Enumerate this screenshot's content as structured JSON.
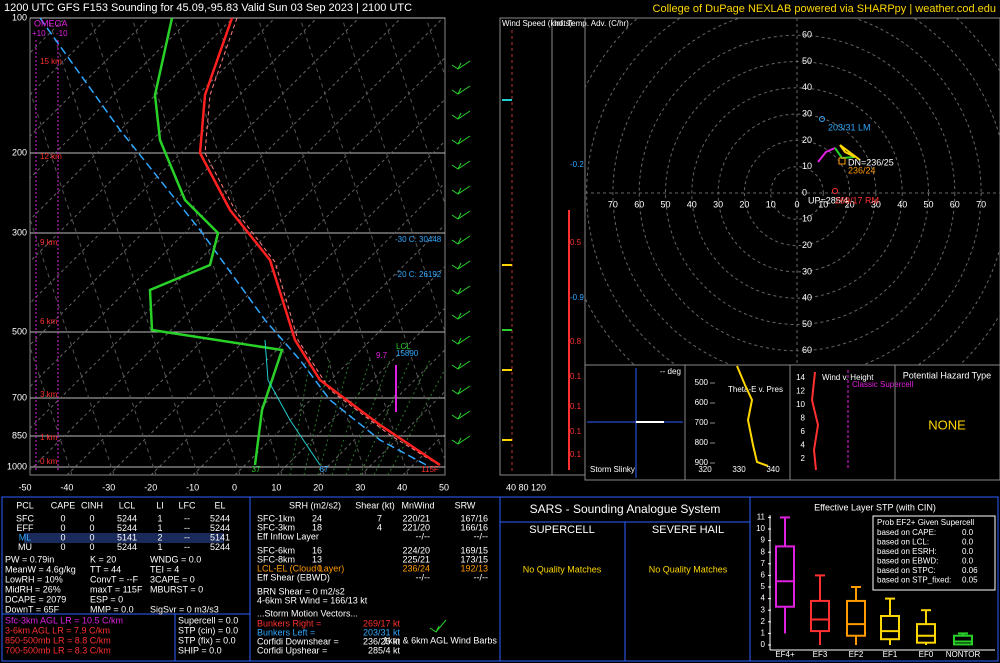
{
  "header": {
    "title": "1200 UTC GFS F153 Sounding for 45.09,-95.83 Valid  Sun 03 Sep 2023 | 2100 UTC",
    "credit": "College of DuPage NEXLAB powered via SHARPpy | weather.cod.edu"
  },
  "skewt": {
    "omega": "OMEGA",
    "omega_scale": [
      "+10",
      "-10"
    ],
    "pressures": [
      "100",
      "200",
      "300",
      "500",
      "700",
      "850",
      "1000"
    ],
    "temps": [
      "-50",
      "-40",
      "-30",
      "-20",
      "-10",
      "0",
      "10",
      "20",
      "30",
      "40",
      "50"
    ],
    "heights": [
      "15 km",
      "12 km",
      "9 km",
      "6 km",
      "3 km",
      "1 km",
      "0 km"
    ],
    "levels": [
      "-30 C: 30448",
      "-20 C: 26192",
      "LCL",
      "15890",
      "9.7"
    ],
    "sfc": [
      "37",
      "67",
      "115F"
    ]
  },
  "columns": {
    "wind_speed": "Wind Speed (knots)",
    "advection": "Inf. Temp. Adv. (C/hr)",
    "scale": "40 80 120",
    "advection_values": [
      "-0.2",
      "0.5",
      "-0.9",
      "0.8",
      "0.1",
      "0.1",
      "0.1",
      "0.1"
    ]
  },
  "hodograph": {
    "x_labels": [
      "70",
      "60",
      "50",
      "40",
      "30",
      "20",
      "10",
      "0",
      "10",
      "20",
      "30",
      "40",
      "50",
      "60",
      "70"
    ],
    "y_labels": [
      "60",
      "50",
      "40",
      "30",
      "20",
      "10",
      "0",
      "10",
      "20",
      "30",
      "40",
      "50",
      "60"
    ],
    "annotations": [
      "203/31 LM",
      "DN=236/25",
      "236/24",
      "UP=285/4",
      "269/17 RM"
    ]
  },
  "panels": {
    "slinky": "Storm Slinky",
    "slinky_deg": "-- deg",
    "theta_e": "Theta-E v. Pres",
    "theta_e_pressures": [
      "500",
      "600",
      "700",
      "800",
      "900"
    ],
    "theta_e_temps": [
      "320",
      "330",
      "340"
    ],
    "wind_height": "Wind v. Height",
    "classic_supercell": "Classic Supercell",
    "heights": [
      "14",
      "12",
      "10",
      "8",
      "6",
      "4",
      "2"
    ],
    "hazard_title": "Potential Hazard Type",
    "hazard": "NONE"
  },
  "parcels": {
    "header": [
      "PCL",
      "CAPE",
      "CINH",
      "LCL",
      "LI",
      "LFC",
      "EL"
    ],
    "rows": [
      [
        "SFC",
        "0",
        "0",
        "5244",
        "1",
        "--",
        "5244"
      ],
      [
        "EFF",
        "0",
        "0",
        "5244",
        "1",
        "--",
        "5244"
      ],
      [
        "ML",
        "0",
        "0",
        "5141",
        "2",
        "--",
        "5141"
      ],
      [
        "MU",
        "0",
        "0",
        "5244",
        "1",
        "--",
        "5244"
      ]
    ]
  },
  "indices": [
    [
      "PW = 0.79in",
      "K = 20",
      "WNDG = 0.0"
    ],
    [
      "MeanW = 4.6g/kg",
      "TT = 44",
      "TEI = 4"
    ],
    [
      "LowRH = 10%",
      "ConvT = --F",
      "3CAPE = 0"
    ],
    [
      "MidRH = 26%",
      "maxT = 115F",
      "MBURST = 0"
    ],
    [
      "DCAPE = 2079",
      "ESP = 0"
    ],
    [
      "DownT = 65F",
      "MMP = 0.0",
      "SigSvr = 0 m3/s3"
    ]
  ],
  "lapse_rates": [
    "Sfc-3km AGL LR = 10.5 C/km",
    "3-6km AGL LR = 7.9 C/km",
    "850-500mb LR = 8.8 C/km",
    "700-500mb LR = 8.3 C/km"
  ],
  "composites": [
    "Supercell = 0.0",
    "STP (cin) = 0.0",
    "STP (fix) = 0.0",
    "SHIP = 0.0"
  ],
  "kinematics": {
    "header": [
      "SRH (m2/s2)",
      "Shear (kt)",
      "MnWind",
      "SRW"
    ],
    "rows": [
      [
        "SFC-1km",
        "24",
        "7",
        "220/21",
        "167/16"
      ],
      [
        "SFC-3km",
        "18",
        "4",
        "221/20",
        "166/16"
      ],
      [
        "Eff Inflow Layer",
        "--/--",
        "--/--"
      ],
      [
        "SFC-6km",
        "16",
        "224/20",
        "169/15"
      ],
      [
        "SFC-8km",
        "13",
        "225/21",
        "173/15"
      ],
      [
        "LCL-EL (Cloud Layer)",
        "0",
        "236/24",
        "192/13"
      ],
      [
        "Eff Shear (EBWD)",
        "--/--",
        "--/--"
      ]
    ],
    "other": [
      "BRN Shear = 0 m2/s2",
      "4-6km SR Wind = 166/13 kt",
      "...Storm Motion Vectors..."
    ],
    "motions": [
      [
        "Bunkers Right = ",
        "269/17 kt"
      ],
      [
        "Bunkers Left = ",
        "203/31 kt"
      ],
      [
        "Corfidi Downshear = ",
        "236/25 kt"
      ],
      [
        "Corfidi Upshear = ",
        "285/4 kt"
      ]
    ],
    "barb_caption": "1km & 6km AGL Wind Barbs"
  },
  "sars": {
    "title": "SARS - Sounding Analogue System",
    "supercell": "SUPERCELL",
    "hail": "SEVERE HAIL",
    "supercell_result": "No Quality Matches",
    "hail_result": "No Quality Matches"
  },
  "stp": {
    "title": "Effective Layer STP (with CIN)",
    "yticks": [
      "0",
      "1",
      "2",
      "3",
      "4",
      "5",
      "6",
      "7",
      "8",
      "9",
      "10",
      "11"
    ],
    "categories": [
      "EF4+",
      "EF3",
      "EF2",
      "EF1",
      "EF0",
      "NONTOR"
    ],
    "box_title": "Prob EF2+ Given Supercell",
    "rows": [
      [
        "based on CAPE:",
        "0.0"
      ],
      [
        "based on LCL:",
        "0.0"
      ],
      [
        "based on ESRH:",
        "0.0"
      ],
      [
        "based on EBWD:",
        "0.0"
      ],
      [
        "based on STPC:",
        "0.06"
      ],
      [
        "based on STP_fixed:",
        "0.05"
      ]
    ]
  }
}
